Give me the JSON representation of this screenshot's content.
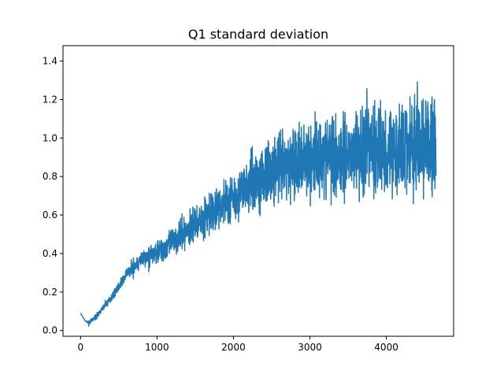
{
  "chart_data": {
    "type": "line",
    "title": "Q1 standard deviation",
    "xlabel": "",
    "ylabel": "",
    "xlim": [
      -230,
      4880
    ],
    "ylim": [
      -0.03,
      1.48
    ],
    "xticks": [
      0,
      1000,
      2000,
      3000,
      4000
    ],
    "yticks": [
      0.0,
      0.2,
      0.4,
      0.6,
      0.8,
      1.0,
      1.2,
      1.4
    ],
    "xtick_labels": [
      "0",
      "1000",
      "2000",
      "3000",
      "4000"
    ],
    "ytick_labels": [
      "0.0",
      "0.2",
      "0.4",
      "0.6",
      "0.8",
      "1.0",
      "1.2",
      "1.4"
    ],
    "grid": false,
    "series": [
      {
        "color": "#1f77b4",
        "x": [
          0,
          60,
          100,
          200,
          300,
          400,
          500,
          600,
          700,
          800,
          900,
          1000,
          1200,
          1400,
          1600,
          1800,
          2000,
          2200,
          2400,
          2600,
          2800,
          3000,
          3200,
          3400,
          3600,
          3800,
          4000,
          4200,
          4400,
          4600,
          4650
        ],
        "center": [
          0.09,
          0.05,
          0.04,
          0.07,
          0.12,
          0.17,
          0.23,
          0.29,
          0.34,
          0.37,
          0.39,
          0.41,
          0.46,
          0.52,
          0.58,
          0.64,
          0.7,
          0.75,
          0.8,
          0.84,
          0.87,
          0.89,
          0.91,
          0.92,
          0.93,
          0.94,
          0.95,
          0.95,
          0.96,
          0.96,
          0.96
        ],
        "spread": [
          0.0,
          0.0,
          0.005,
          0.008,
          0.01,
          0.012,
          0.015,
          0.02,
          0.025,
          0.03,
          0.035,
          0.04,
          0.05,
          0.06,
          0.07,
          0.08,
          0.09,
          0.1,
          0.11,
          0.12,
          0.13,
          0.14,
          0.15,
          0.16,
          0.16,
          0.17,
          0.17,
          0.18,
          0.18,
          0.19,
          0.19
        ]
      }
    ]
  }
}
